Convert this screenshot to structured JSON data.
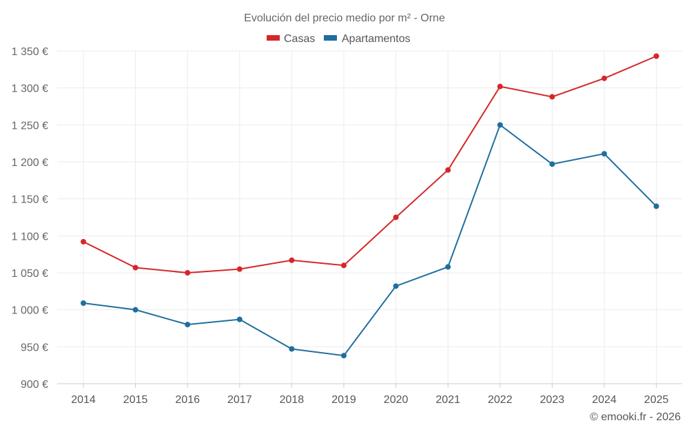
{
  "chart_data": {
    "type": "line",
    "title": "Evolución del precio medio por m² - Orne",
    "categories": [
      "2014",
      "2015",
      "2016",
      "2017",
      "2018",
      "2019",
      "2020",
      "2021",
      "2022",
      "2023",
      "2024",
      "2025"
    ],
    "series": [
      {
        "name": "Casas",
        "color": "#d62728",
        "values": [
          1092,
          1057,
          1050,
          1055,
          1067,
          1060,
          1125,
          1189,
          1302,
          1288,
          1313,
          1343
        ]
      },
      {
        "name": "Apartamentos",
        "color": "#1f6e9e",
        "values": [
          1009,
          1000,
          980,
          987,
          947,
          938,
          1032,
          1058,
          1250,
          1197,
          1211,
          1140
        ]
      }
    ],
    "ylim": [
      900,
      1350
    ],
    "yticks": [
      900,
      950,
      1000,
      1050,
      1100,
      1150,
      1200,
      1250,
      1300,
      1350
    ],
    "ytick_labels": [
      "900 €",
      "950 €",
      "1 000 €",
      "1 050 €",
      "1 100 €",
      "1 150 €",
      "1 200 €",
      "1 250 €",
      "1 300 €",
      "1 350 €"
    ],
    "xlabel": "",
    "ylabel": "",
    "grid": true,
    "legend_position": "top-center"
  },
  "credit": "© emooki.fr - 2026"
}
